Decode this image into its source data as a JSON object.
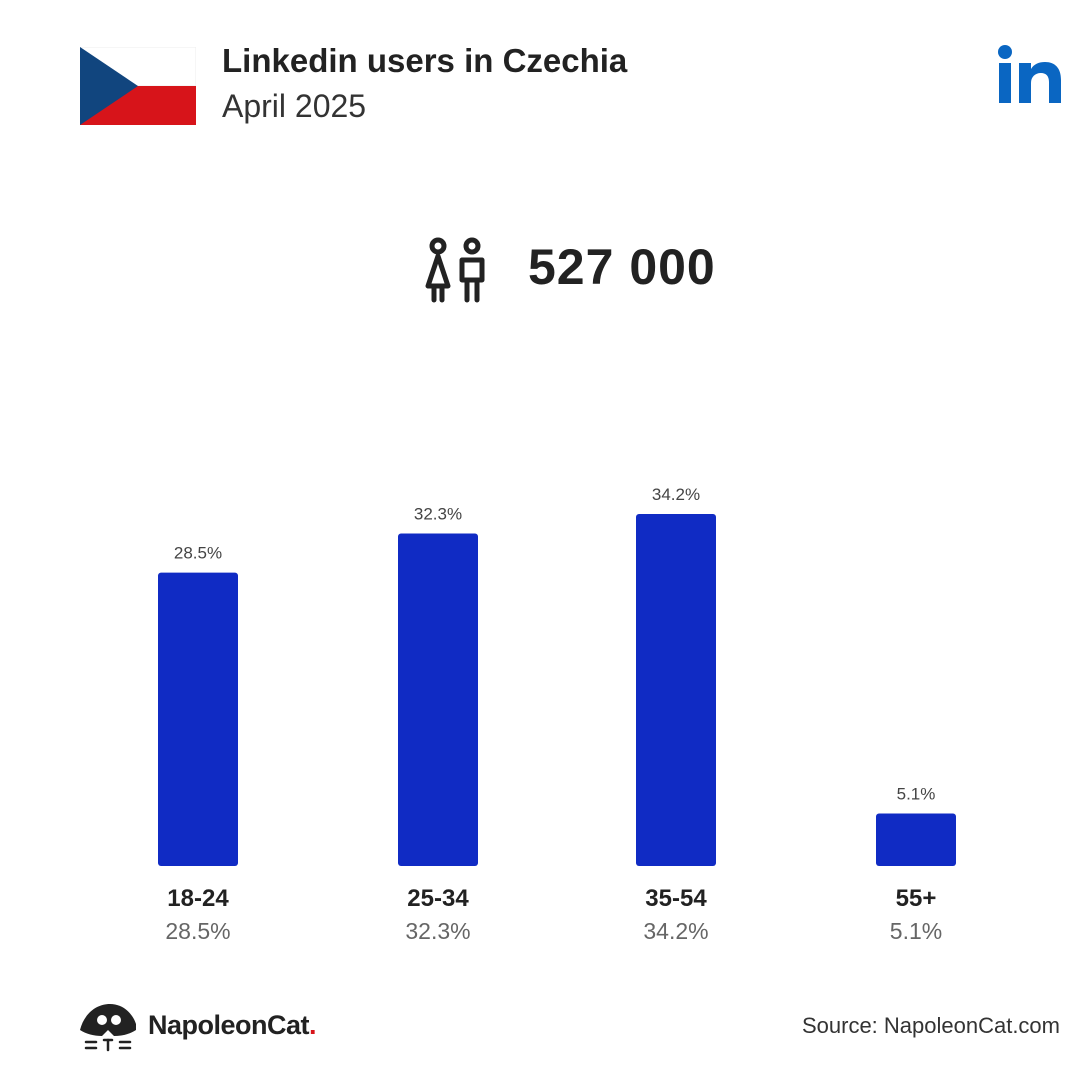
{
  "header": {
    "title": "Linkedin users in Czechia",
    "subtitle": "April 2025"
  },
  "flag": {
    "name": "czech-flag",
    "colors": {
      "white": "#ffffff",
      "red": "#d7141a",
      "blue": "#11457e"
    }
  },
  "brand": {
    "icon": "linkedin-icon",
    "color": "#0a66c2"
  },
  "users": {
    "icon": "users-icon",
    "count": "527 000"
  },
  "chart_data": {
    "type": "bar",
    "categories": [
      "18-24",
      "25-34",
      "35-54",
      "55+"
    ],
    "values": [
      28.5,
      32.3,
      34.2,
      5.1
    ],
    "value_labels": [
      "28.5%",
      "32.3%",
      "34.2%",
      "5.1%"
    ],
    "unit": "%",
    "ylim": [
      0,
      34.2
    ],
    "bar_color": "#102bc4",
    "grid": false,
    "legend": "none"
  },
  "footer": {
    "logo_icon": "napoleoncat-icon",
    "brand": "NapoleonCat",
    "brand_dot": ".",
    "source": "Source: NapoleonCat.com"
  }
}
